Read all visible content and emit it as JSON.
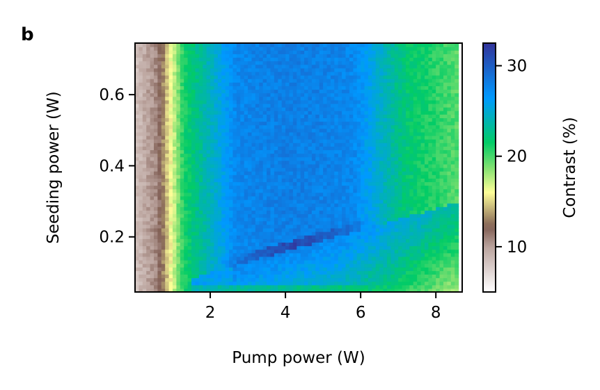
{
  "panel_label": "b",
  "chart_data": {
    "type": "heatmap",
    "xlabel": "Pump power (W)",
    "ylabel": "Seeding power (W)",
    "colorbar_label": "Contrast (%)",
    "xlim": [
      0.0,
      8.7
    ],
    "ylim": [
      0.045,
      0.745
    ],
    "xticks": [
      2,
      4,
      6,
      8
    ],
    "xtick_labels": [
      "2",
      "4",
      "6",
      "8"
    ],
    "yticks": [
      0.2,
      0.4,
      0.6
    ],
    "ytick_labels": [
      "0.2",
      "0.4",
      "0.6"
    ],
    "clim": [
      5,
      32.5
    ],
    "cticks": [
      10,
      20,
      30
    ],
    "ctick_labels": [
      "10",
      "20",
      "30"
    ],
    "colormap": "terrain_r",
    "colormap_stops": [
      {
        "v": 0.0,
        "color": "#ffffff"
      },
      {
        "v": 0.18,
        "color": "#bba49e"
      },
      {
        "v": 0.26,
        "color": "#805e54"
      },
      {
        "v": 0.4,
        "color": "#fefe98"
      },
      {
        "v": 0.5,
        "color": "#80e070"
      },
      {
        "v": 0.6,
        "color": "#02cc66"
      },
      {
        "v": 0.78,
        "color": "#0099ff"
      },
      {
        "v": 1.0,
        "color": "#333399"
      }
    ],
    "grid": {
      "x_start": 0.05,
      "x_step": 0.1,
      "nx": 86,
      "y_start": 0.05,
      "y_step": 0.01,
      "ny": 70
    },
    "description_of_trend": "Contrast peaks (~31-32%) in a band near pump 3-5 W along a ridge where seeding ~0.13-0.2 W, is ~28% in the central vertical band (pump 2.7-5.8 W), drops to ~20% near 1 W pump and to ~8% below 0.6 W pump."
  }
}
